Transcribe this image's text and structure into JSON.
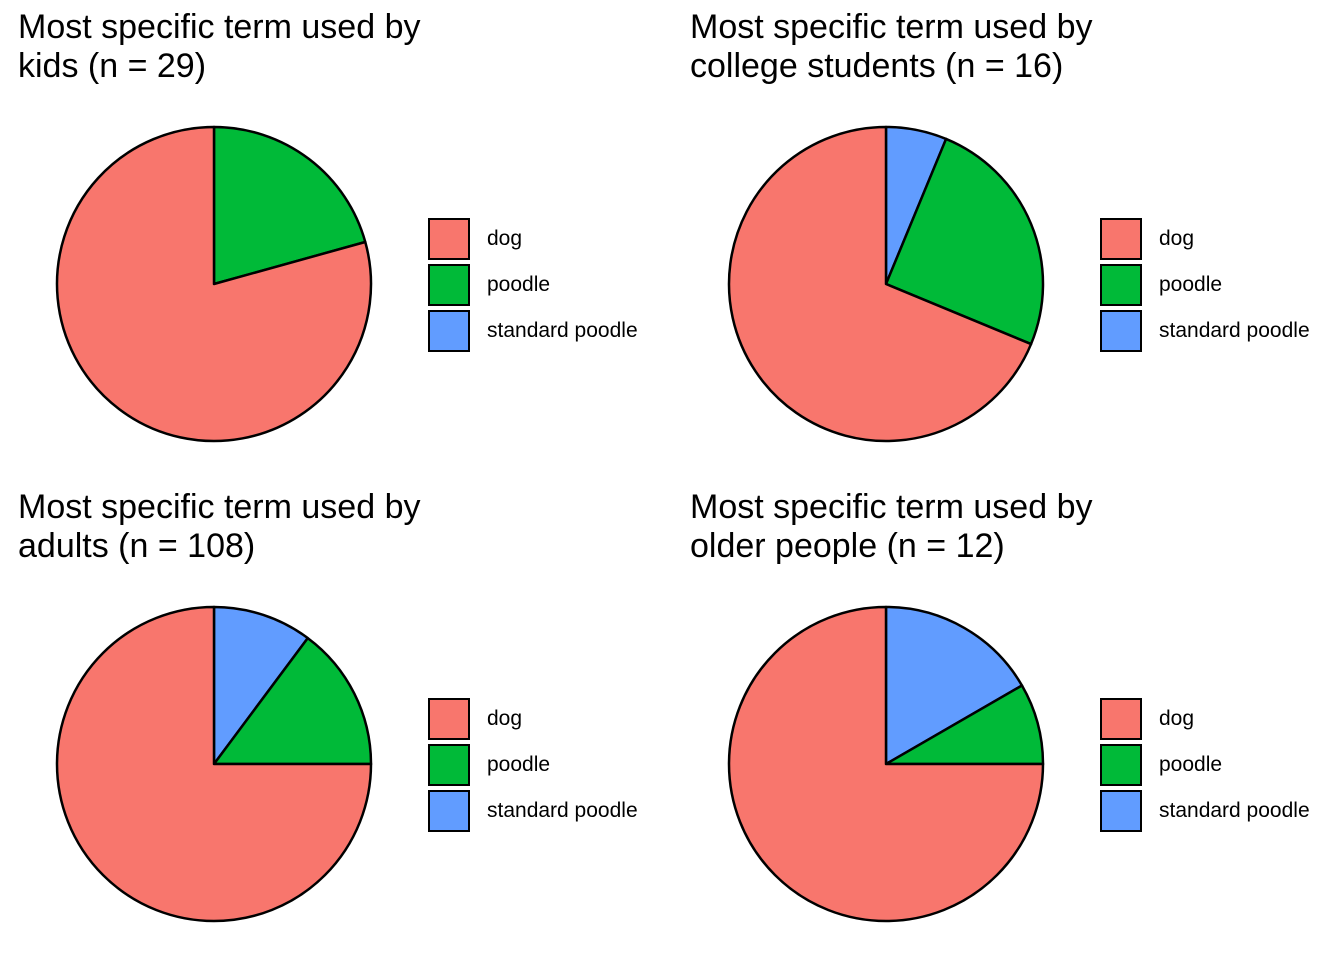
{
  "chart_data": [
    {
      "type": "pie",
      "title_lines": [
        "Most specific term used by",
        "kids (n = 29)"
      ],
      "categories": [
        "dog",
        "poodle",
        "standard poodle"
      ],
      "values": [
        23,
        6,
        0
      ],
      "legend_position": "right"
    },
    {
      "type": "pie",
      "title_lines": [
        "Most specific term used by",
        "college students (n = 16)"
      ],
      "categories": [
        "dog",
        "poodle",
        "standard poodle"
      ],
      "values": [
        11,
        4,
        1
      ],
      "legend_position": "right"
    },
    {
      "type": "pie",
      "title_lines": [
        "Most specific term used by",
        "adults (n = 108)"
      ],
      "categories": [
        "dog",
        "poodle",
        "standard poodle"
      ],
      "values": [
        81,
        16,
        11
      ],
      "legend_position": "right"
    },
    {
      "type": "pie",
      "title_lines": [
        "Most specific term used by",
        "older people (n = 12)"
      ],
      "categories": [
        "dog",
        "poodle",
        "standard poodle"
      ],
      "values": [
        9,
        1,
        2
      ],
      "legend_position": "right"
    }
  ],
  "colors": {
    "dog": "#F8766D",
    "poodle": "#00BA38",
    "standard poodle": "#619CFF"
  },
  "legend": {
    "items": [
      "dog",
      "poodle",
      "standard poodle"
    ]
  }
}
